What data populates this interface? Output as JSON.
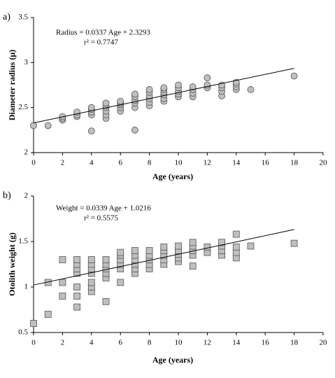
{
  "chart_data": [
    {
      "type": "scatter",
      "panel_label": "a)",
      "xlabel": "Age (years)",
      "ylabel": "Diameter radius  (μ)",
      "annotations": [
        "Radius = 0.0337 Age + 2.3293",
        "r² = 0.7747"
      ],
      "marker": "circle",
      "color": "#bfbfbf",
      "xlim": [
        0,
        20
      ],
      "xticks": [
        0,
        2,
        4,
        6,
        8,
        10,
        12,
        14,
        16,
        18,
        20
      ],
      "ylim": [
        2,
        3.5
      ],
      "yticks": [
        2,
        2.5,
        3,
        3.5
      ],
      "trendline": {
        "slope": 0.0337,
        "intercept": 2.3293
      },
      "x": [
        0,
        1,
        2,
        2,
        2,
        3,
        3,
        3,
        4,
        4,
        4,
        4,
        4,
        5,
        5,
        5,
        5,
        5,
        5,
        6,
        6,
        6,
        6,
        6,
        7,
        7,
        7,
        7,
        7,
        7,
        8,
        8,
        8,
        8,
        8,
        8,
        9,
        9,
        9,
        9,
        9,
        9,
        10,
        10,
        10,
        10,
        10,
        11,
        11,
        11,
        11,
        12,
        12,
        12,
        13,
        13,
        13,
        13,
        14,
        14,
        14,
        14,
        15,
        18
      ],
      "values": [
        2.3,
        2.3,
        2.36,
        2.38,
        2.4,
        2.4,
        2.42,
        2.45,
        2.24,
        2.42,
        2.45,
        2.48,
        2.5,
        2.38,
        2.42,
        2.46,
        2.5,
        2.52,
        2.55,
        2.46,
        2.5,
        2.53,
        2.55,
        2.57,
        2.25,
        2.5,
        2.55,
        2.58,
        2.62,
        2.65,
        2.52,
        2.56,
        2.6,
        2.63,
        2.67,
        2.7,
        2.57,
        2.6,
        2.64,
        2.67,
        2.7,
        2.72,
        2.62,
        2.65,
        2.68,
        2.72,
        2.75,
        2.62,
        2.66,
        2.7,
        2.73,
        2.72,
        2.75,
        2.83,
        2.63,
        2.68,
        2.72,
        2.75,
        2.7,
        2.73,
        2.76,
        2.78,
        2.7,
        2.85
      ]
    },
    {
      "type": "scatter",
      "panel_label": "b)",
      "xlabel": "Age (years)",
      "ylabel": "Otolith weight  (g)",
      "annotations": [
        "Weight = 0.0339 Age + 1.0216",
        "r² = 0.5575"
      ],
      "marker": "square",
      "color": "#bfbfbf",
      "xlim": [
        0,
        20
      ],
      "xticks": [
        0,
        2,
        4,
        6,
        8,
        10,
        12,
        14,
        16,
        18,
        20
      ],
      "ylim": [
        0.5,
        2
      ],
      "yticks": [
        0.5,
        1,
        1.5,
        2
      ],
      "trendline": {
        "slope": 0.0339,
        "intercept": 1.0216
      },
      "x": [
        0,
        1,
        1,
        2,
        2,
        2,
        3,
        3,
        3,
        3,
        3,
        3,
        3,
        4,
        4,
        4,
        4,
        4,
        4,
        4,
        5,
        5,
        5,
        5,
        5,
        5,
        6,
        6,
        6,
        6,
        6,
        6,
        7,
        7,
        7,
        7,
        7,
        7,
        8,
        8,
        8,
        8,
        8,
        9,
        9,
        9,
        9,
        9,
        10,
        10,
        10,
        10,
        10,
        11,
        11,
        11,
        11,
        11,
        12,
        12,
        13,
        13,
        13,
        13,
        14,
        14,
        14,
        14,
        15,
        18
      ],
      "values": [
        0.6,
        0.7,
        1.05,
        0.9,
        1.05,
        1.3,
        0.78,
        0.9,
        1.0,
        1.15,
        1.2,
        1.25,
        1.3,
        0.95,
        1.0,
        1.05,
        1.15,
        1.2,
        1.25,
        1.3,
        0.84,
        1.1,
        1.15,
        1.2,
        1.25,
        1.3,
        1.05,
        1.2,
        1.25,
        1.3,
        1.35,
        1.38,
        1.15,
        1.2,
        1.25,
        1.3,
        1.35,
        1.4,
        1.2,
        1.25,
        1.3,
        1.35,
        1.4,
        1.25,
        1.3,
        1.35,
        1.4,
        1.44,
        1.28,
        1.32,
        1.36,
        1.4,
        1.45,
        1.23,
        1.35,
        1.4,
        1.45,
        1.49,
        1.38,
        1.44,
        1.35,
        1.4,
        1.45,
        1.49,
        1.32,
        1.38,
        1.44,
        1.58,
        1.45,
        1.48
      ]
    }
  ]
}
